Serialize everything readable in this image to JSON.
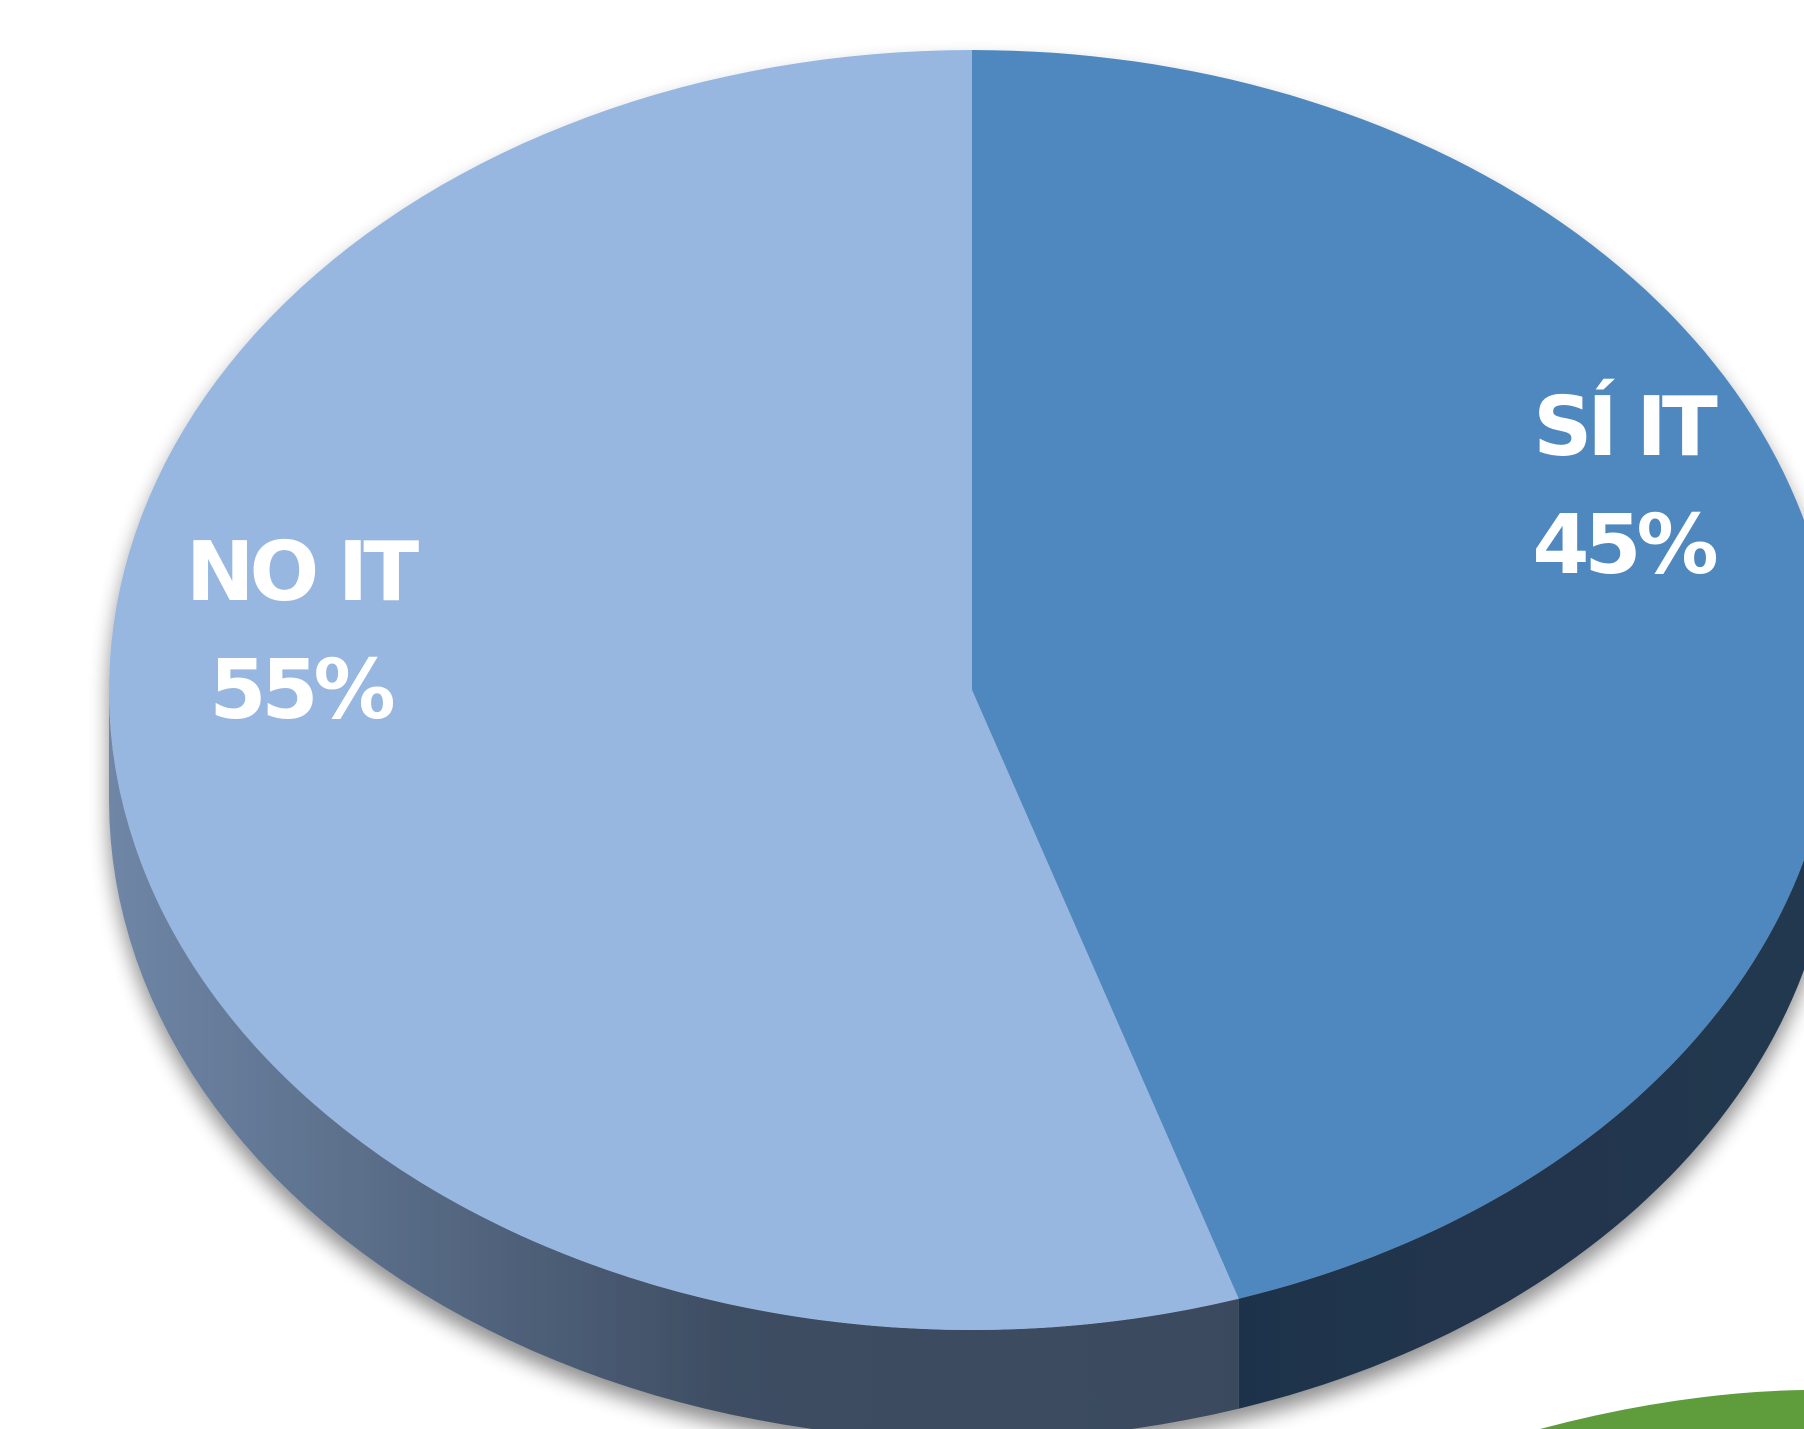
{
  "chart_data": {
    "type": "pie",
    "title": "",
    "style": "3d",
    "slices": [
      {
        "label": "SÍ IT",
        "value": 45,
        "display": "45%",
        "color": "#4f88be"
      },
      {
        "label": "NO IT",
        "value": 55,
        "display": "55%",
        "color": "#97b7e0"
      }
    ],
    "edge_colors": {
      "light_slice_side": "#475a72",
      "dark_slice_side": "#1f344d"
    },
    "corner_decoration_color": "#5f9c3c"
  }
}
